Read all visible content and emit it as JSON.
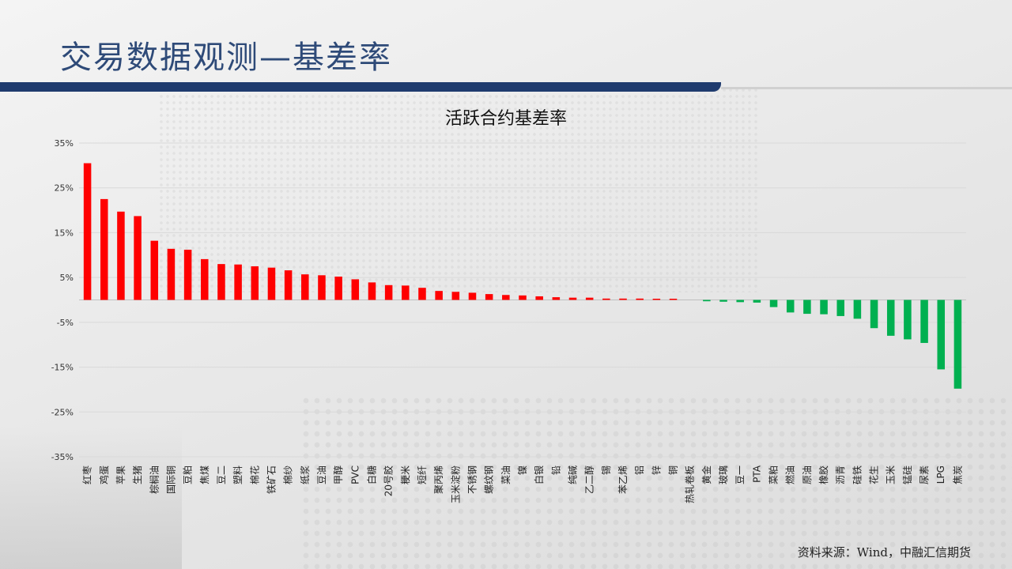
{
  "slide": {
    "title": "交易数据观测—基差率",
    "source": "资料来源：Wind，中融汇信期货"
  },
  "colors": {
    "positive": "#ff0000",
    "negative": "#00b050",
    "title": "#2e4a78",
    "header_bar": "#1f3b6e"
  },
  "chart_data": {
    "type": "bar",
    "title": "活跃合约基差率",
    "xlabel": "",
    "ylabel": "",
    "ylim": [
      -35,
      35
    ],
    "yticks": [
      35,
      25,
      15,
      5,
      -5,
      -15,
      -25,
      -35
    ],
    "ytick_labels": [
      "35%",
      "25%",
      "15%",
      "5%",
      "-5%",
      "-15%",
      "-25%",
      "-35%"
    ],
    "grid": true,
    "legend": "none",
    "categories": [
      "红枣",
      "鸡蛋",
      "苹果",
      "生猪",
      "棕榈油",
      "国际铜",
      "豆粕",
      "焦煤",
      "豆二",
      "塑料",
      "棉花",
      "铁矿石",
      "棉纱",
      "纸浆",
      "豆油",
      "甲醇",
      "PVC",
      "白糖",
      "20号胶",
      "粳米",
      "短纤",
      "聚丙烯",
      "玉米淀粉",
      "不锈钢",
      "螺纹钢",
      "菜油",
      "镍",
      "白银",
      "铅",
      "纯碱",
      "乙二醇",
      "锡",
      "苯乙烯",
      "铝",
      "锌",
      "铜",
      "热轧卷板",
      "黄金",
      "玻璃",
      "豆一",
      "PTA",
      "菜粕",
      "燃油",
      "原油",
      "橡胶",
      "沥青",
      "硅铁",
      "花生",
      "玉米",
      "锰硅",
      "尿素",
      "LPG",
      "焦炭"
    ],
    "values": [
      30.5,
      22.5,
      19.7,
      18.7,
      13.2,
      11.4,
      11.2,
      9.1,
      8.0,
      7.9,
      7.5,
      7.2,
      6.6,
      5.7,
      5.5,
      5.2,
      4.6,
      3.9,
      3.3,
      3.2,
      2.7,
      2.0,
      1.8,
      1.6,
      1.3,
      1.1,
      1.0,
      0.8,
      0.6,
      0.5,
      0.5,
      0.3,
      0.3,
      0.3,
      0.2,
      0.2,
      0.0,
      -0.3,
      -0.4,
      -0.5,
      -0.6,
      -1.6,
      -2.8,
      -3.1,
      -3.2,
      -3.6,
      -4.2,
      -6.3,
      -8.0,
      -8.8,
      -9.6,
      -15.5,
      -19.8
    ]
  }
}
